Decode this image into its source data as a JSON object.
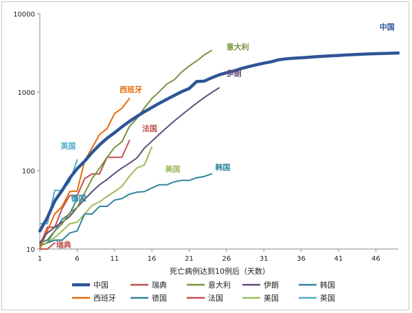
{
  "chart_data": {
    "type": "line",
    "title": "",
    "xlabel": "死亡病例达到10例后（天数）",
    "ylabel": "",
    "y_scale": "log",
    "ylim": [
      10,
      10000
    ],
    "xlim": [
      1,
      49
    ],
    "x_ticks": [
      "1",
      "6",
      "11",
      "16",
      "21",
      "26",
      "31",
      "36",
      "41",
      "46"
    ],
    "y_ticks": [
      "10",
      "100",
      "1000",
      "10000"
    ],
    "grid": false,
    "legend_position": "bottom",
    "series": [
      {
        "name": "中国",
        "color": "#2f5597",
        "width": 4.5,
        "x": [
          1,
          2,
          3,
          4,
          5,
          6,
          7,
          8,
          9,
          10,
          11,
          12,
          13,
          14,
          15,
          16,
          17,
          18,
          19,
          20,
          21,
          22,
          23,
          24,
          25,
          26,
          27,
          28,
          29,
          30,
          31,
          32,
          33,
          34,
          35,
          36,
          37,
          38,
          39,
          40,
          41,
          42,
          43,
          44,
          45,
          46,
          47,
          48,
          49
        ],
        "y": [
          17,
          25,
          41,
          56,
          80,
          106,
          132,
          170,
          213,
          259,
          304,
          361,
          425,
          490,
          563,
          637,
          722,
          811,
          908,
          1016,
          1113,
          1368,
          1381,
          1523,
          1665,
          1770,
          1868,
          2004,
          2118,
          2236,
          2345,
          2442,
          2592,
          2663,
          2715,
          2744,
          2788,
          2835,
          2870,
          2912,
          2943,
          2981,
          3013,
          3045,
          3073,
          3099,
          3119,
          3136,
          3158
        ]
      },
      {
        "name": "瑞典",
        "color": "#c0504d",
        "width": 2,
        "x": [
          1,
          2,
          3
        ],
        "y": [
          10,
          10,
          12
        ]
      },
      {
        "name": "意大利",
        "color": "#77933c",
        "width": 2,
        "x": [
          1,
          2,
          3,
          4,
          5,
          6,
          7,
          8,
          9,
          10,
          11,
          12,
          13,
          14,
          15,
          16,
          17,
          18,
          19,
          20,
          21,
          22,
          23,
          24
        ],
        "y": [
          11,
          12,
          17,
          21,
          29,
          34,
          52,
          79,
          107,
          148,
          197,
          233,
          366,
          463,
          631,
          827,
          1016,
          1266,
          1441,
          1809,
          2158,
          2503,
          2978,
          3405
        ]
      },
      {
        "name": "伊朗",
        "color": "#604a7b",
        "width": 2,
        "x": [
          1,
          2,
          3,
          4,
          5,
          6,
          7,
          8,
          9,
          10,
          11,
          12,
          13,
          14,
          15,
          16,
          17,
          18,
          19,
          20,
          21,
          22,
          23,
          24,
          25
        ],
        "y": [
          12,
          16,
          19,
          22,
          26,
          34,
          43,
          54,
          66,
          77,
          92,
          108,
          124,
          145,
          194,
          237,
          291,
          354,
          429,
          514,
          611,
          724,
          853,
          988,
          1135
        ]
      },
      {
        "name": "韩国",
        "color": "#31859c",
        "width": 2,
        "x": [
          1,
          2,
          3,
          4,
          5,
          6,
          7,
          8,
          9,
          10,
          11,
          12,
          13,
          14,
          15,
          16,
          17,
          18,
          19,
          20,
          21,
          22,
          23,
          24
        ],
        "y": [
          11,
          12,
          13,
          13,
          16,
          17,
          28,
          28,
          35,
          35,
          42,
          44,
          50,
          53,
          54,
          60,
          66,
          66,
          72,
          75,
          75,
          81,
          84,
          91
        ]
      },
      {
        "name": "西班牙",
        "color": "#e46c0a",
        "width": 2,
        "x": [
          1,
          2,
          3,
          4,
          5,
          6,
          7,
          8,
          9,
          10,
          11,
          12,
          13
        ],
        "y": [
          10,
          17,
          28,
          35,
          54,
          55,
          133,
          195,
          289,
          342,
          533,
          623,
          830
        ]
      },
      {
        "name": "德国",
        "color": "#31859c",
        "width": 2,
        "x": [
          1,
          2,
          3,
          4,
          5,
          6
        ],
        "y": [
          12,
          13,
          17,
          24,
          28,
          44
        ]
      },
      {
        "name": "法国",
        "color": "#c0504d",
        "width": 2,
        "x": [
          1,
          2,
          3,
          4,
          5,
          6,
          7,
          8,
          9,
          10,
          11,
          12,
          13
        ],
        "y": [
          11,
          19,
          19,
          33,
          48,
          48,
          79,
          91,
          91,
          148,
          148,
          148,
          243
        ]
      },
      {
        "name": "美国",
        "color": "#9bbb59",
        "width": 2,
        "x": [
          1,
          2,
          3,
          4,
          5,
          6,
          7,
          8,
          9,
          10,
          11,
          12,
          13,
          14,
          15,
          16
        ],
        "y": [
          11,
          12,
          14,
          17,
          21,
          22,
          28,
          36,
          40,
          47,
          54,
          63,
          85,
          108,
          118,
          200
        ]
      },
      {
        "name": "英国",
        "color": "#4bacc6",
        "width": 2,
        "x": [
          1,
          2,
          3,
          4,
          5,
          6
        ],
        "y": [
          21,
          21,
          56,
          56,
          72,
          137
        ]
      }
    ],
    "line_labels": [
      {
        "text": "中国",
        "color": "#2f5597",
        "x": 47.5,
        "y": 6300
      },
      {
        "text": "意大利",
        "color": "#77933c",
        "x": 27.5,
        "y": 3500
      },
      {
        "text": "伊朗",
        "color": "#604a7b",
        "x": 27,
        "y": 1600
      },
      {
        "text": "西班牙",
        "color": "#e46c0a",
        "x": 13.2,
        "y": 1000
      },
      {
        "text": "法国",
        "color": "#c0504d",
        "x": 15.7,
        "y": 320
      },
      {
        "text": "英国",
        "color": "#4bacc6",
        "x": 4.8,
        "y": 190
      },
      {
        "text": "美国",
        "color": "#9bbb59",
        "x": 18.8,
        "y": 97
      },
      {
        "text": "韩国",
        "color": "#31859c",
        "x": 25.5,
        "y": 102
      },
      {
        "text": "德国",
        "color": "#31859c",
        "x": 6.2,
        "y": 41
      },
      {
        "text": "瑞典",
        "color": "#c0504d",
        "x": 4.2,
        "y": 10.5
      }
    ]
  }
}
